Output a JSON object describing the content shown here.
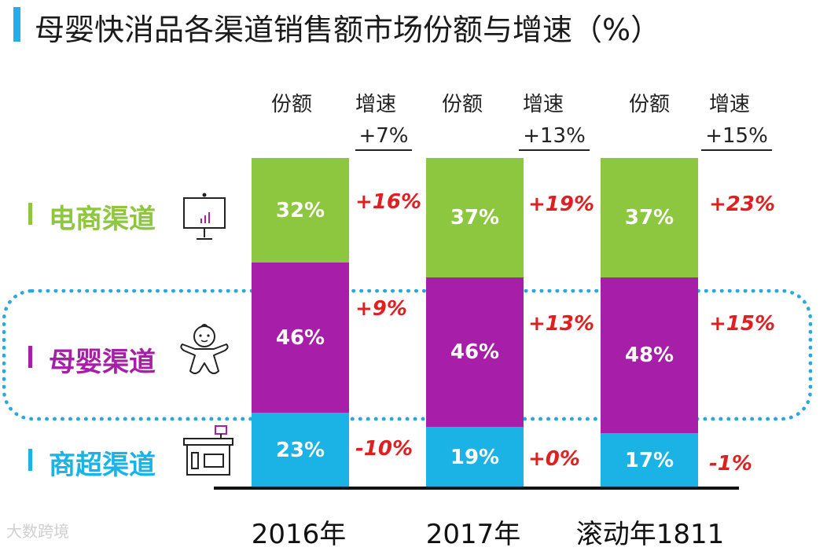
{
  "title": "母婴快消品各渠道销售额市场份额与增速（%）",
  "headers": {
    "share": "份额",
    "growth": "增速"
  },
  "channels": [
    {
      "name": "电商渠道",
      "color": "#8dc63f",
      "icon": "monitor-chart-icon"
    },
    {
      "name": "母婴渠道",
      "color": "#a71fa8",
      "icon": "baby-icon"
    },
    {
      "name": "商超渠道",
      "color": "#1bb3e6",
      "icon": "store-icon"
    }
  ],
  "chart_data": {
    "type": "bar",
    "stacked": true,
    "categories": [
      "2016年",
      "2017年",
      "滚动年1811"
    ],
    "series": [
      {
        "name": "电商渠道",
        "values": [
          32,
          37,
          37
        ],
        "labels": [
          "32%",
          "37%",
          "37%"
        ],
        "growth": [
          "+16%",
          "+19%",
          "+23%"
        ],
        "color": "#8dc63f"
      },
      {
        "name": "母婴渠道",
        "values": [
          46,
          46,
          48
        ],
        "labels": [
          "46%",
          "46%",
          "48%"
        ],
        "growth": [
          "+9%",
          "+13%",
          "+15%"
        ],
        "color": "#a71fa8"
      },
      {
        "name": "商超渠道",
        "values": [
          23,
          19,
          17
        ],
        "labels": [
          "23%",
          "19%",
          "17%"
        ],
        "growth": [
          "-10%",
          "+0%",
          "-1%"
        ],
        "color": "#1bb3e6"
      }
    ],
    "total_growth": [
      "+7%",
      "+13%",
      "+15%"
    ],
    "unit": "%"
  },
  "watermark": "大数跨境"
}
